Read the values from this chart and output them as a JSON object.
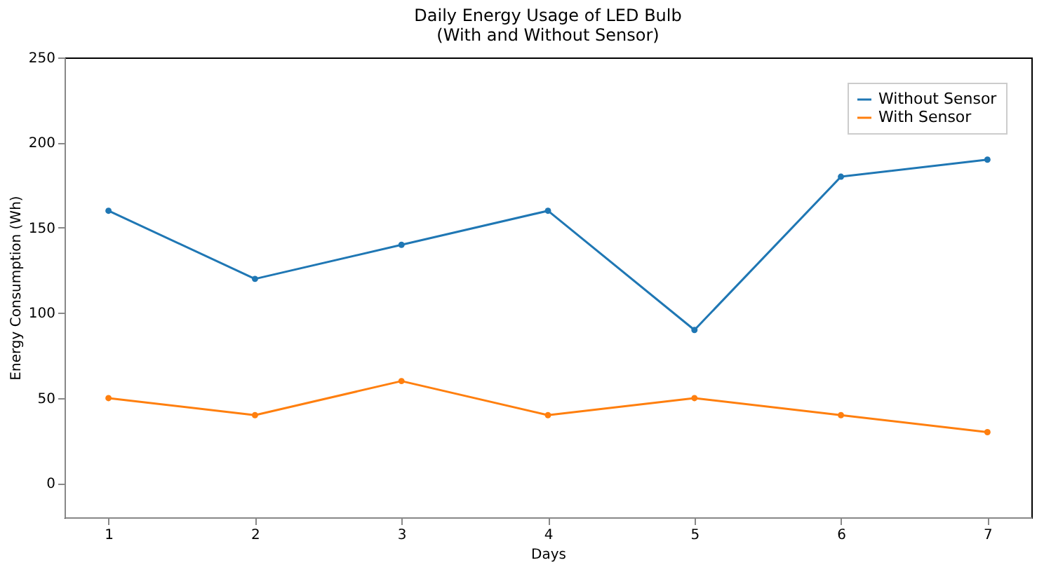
{
  "chart_data": {
    "type": "line",
    "title": "Daily Energy Usage of LED Bulb\n(With and Without Sensor)",
    "xlabel": "Days",
    "ylabel": "Energy Consumption (Wh)",
    "x": [
      1,
      2,
      3,
      4,
      5,
      6,
      7
    ],
    "series": [
      {
        "name": "Without Sensor",
        "color": "#1f77b4",
        "values": [
          160,
          120,
          140,
          160,
          90,
          180,
          190
        ]
      },
      {
        "name": "With Sensor",
        "color": "#ff7f0e",
        "values": [
          50,
          40,
          60,
          40,
          50,
          40,
          30
        ]
      }
    ],
    "xlim": [
      0.7,
      7.3
    ],
    "xticks": [
      1,
      2,
      3,
      4,
      5,
      6,
      7
    ],
    "ylim": [
      -20,
      250
    ],
    "yticks": [
      0,
      50,
      100,
      150,
      200,
      250
    ],
    "grid": false,
    "legend": "top right",
    "marker": "circle",
    "line_style": "solid"
  }
}
